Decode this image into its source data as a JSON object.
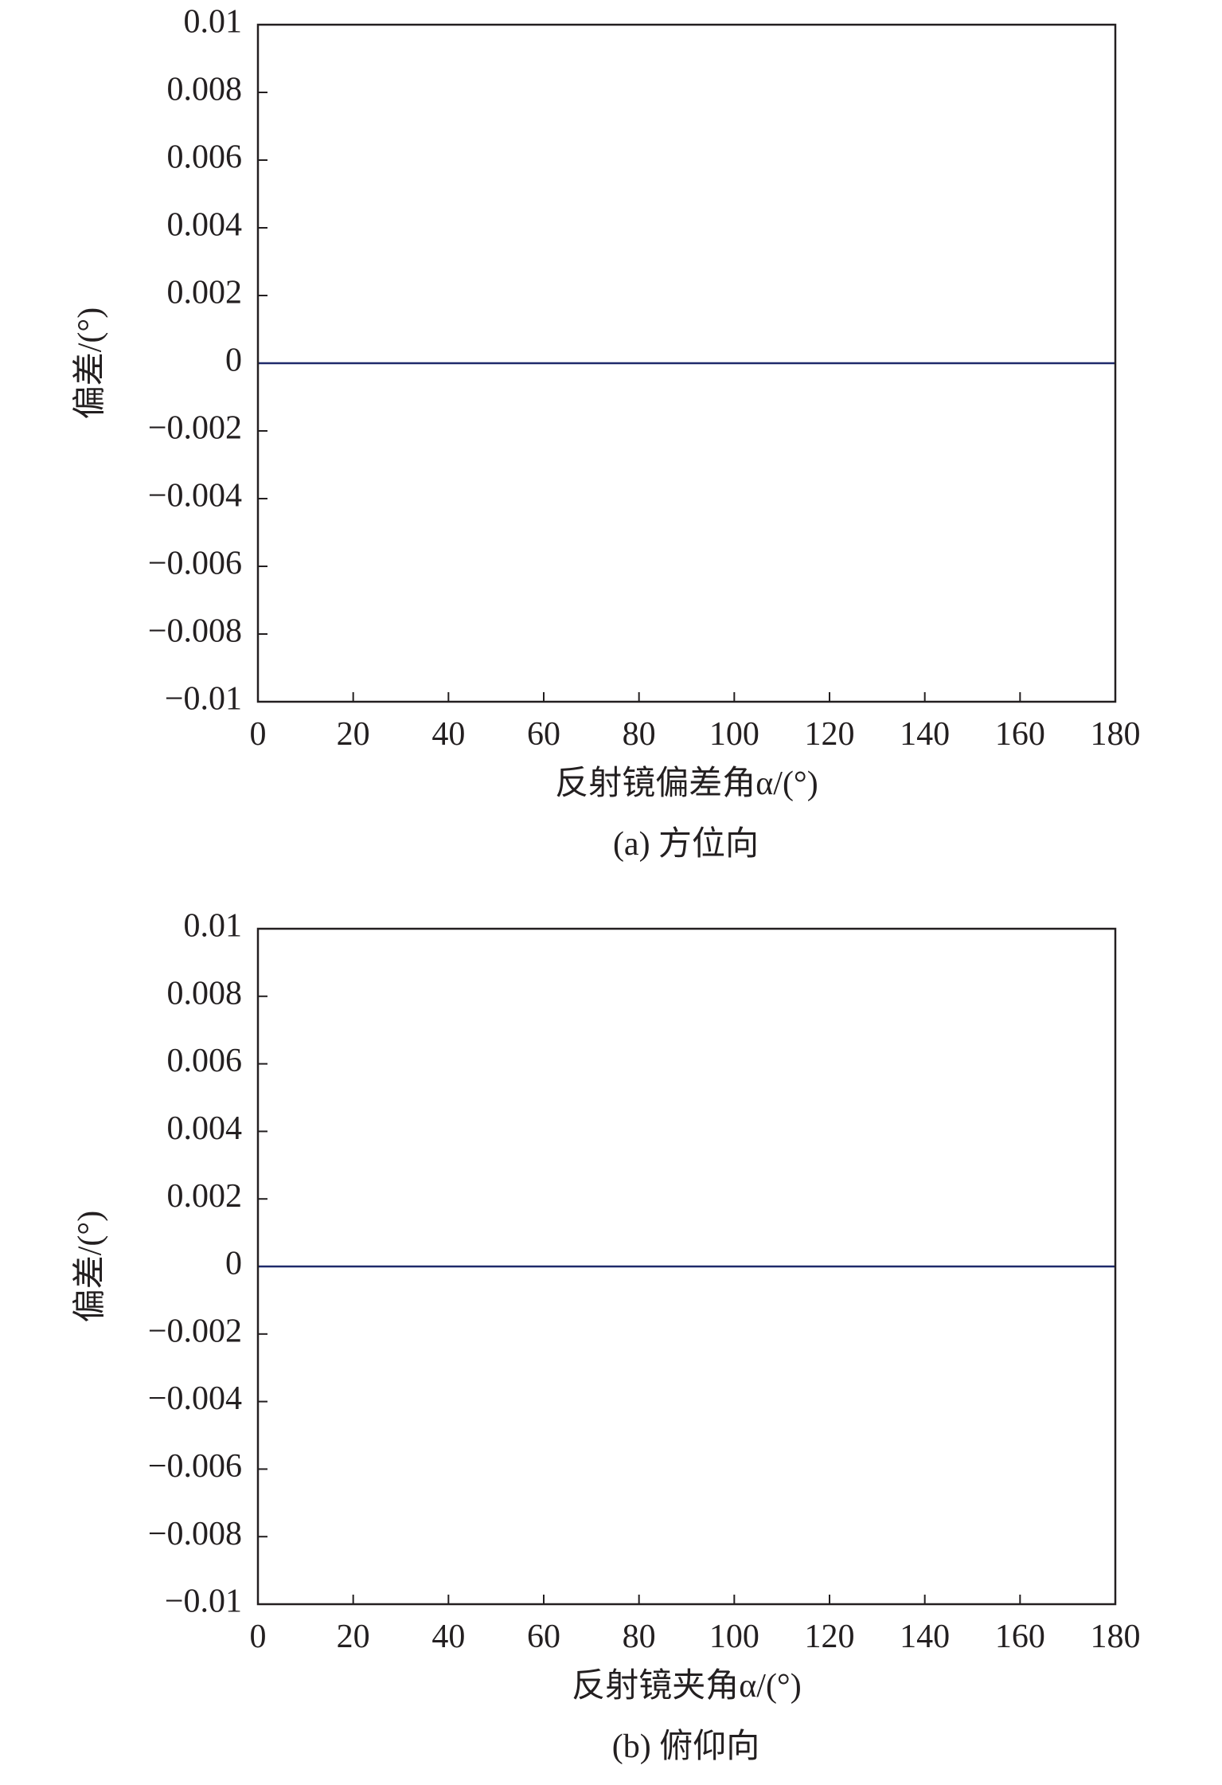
{
  "chart_data": [
    {
      "type": "line",
      "title": "(a) 方位向",
      "x_label": "反射镜偏差角α/(°)",
      "y_label": "偏差/(°)",
      "x": [
        0,
        10,
        20,
        30,
        40,
        50,
        60,
        70,
        80,
        90,
        100,
        110,
        120,
        130,
        140,
        150,
        160,
        170,
        180
      ],
      "values": [
        0,
        0,
        0,
        0,
        0,
        0,
        0,
        0,
        0,
        0,
        0,
        0,
        0,
        0,
        0,
        0,
        0,
        0,
        0
      ],
      "color": "#1f2a6b",
      "xlim": [
        0,
        180
      ],
      "xticks": [
        0,
        20,
        40,
        60,
        80,
        100,
        120,
        140,
        160,
        180
      ],
      "ylim": [
        -0.01,
        0.01
      ],
      "yticks": [
        {
          "value": -0.01,
          "label": "−0.01"
        },
        {
          "value": -0.008,
          "label": "−0.008"
        },
        {
          "value": -0.006,
          "label": "−0.006"
        },
        {
          "value": -0.004,
          "label": "−0.004"
        },
        {
          "value": -0.002,
          "label": "−0.002"
        },
        0,
        0.002,
        0.004,
        0.006,
        0.008,
        0.01
      ]
    },
    {
      "type": "line",
      "title": "(b) 俯仰向",
      "x_label": "反射镜夹角α/(°)",
      "y_label": "偏差/(°)",
      "x": [
        0,
        10,
        20,
        30,
        40,
        50,
        60,
        70,
        80,
        90,
        100,
        110,
        120,
        130,
        140,
        150,
        160,
        170,
        180
      ],
      "values": [
        0,
        0,
        0,
        0,
        0,
        0,
        0,
        0,
        0,
        0,
        0,
        0,
        0,
        0,
        0,
        0,
        0,
        0,
        0
      ],
      "color": "#1f2a6b",
      "xlim": [
        0,
        180
      ],
      "xticks": [
        0,
        20,
        40,
        60,
        80,
        100,
        120,
        140,
        160,
        180
      ],
      "ylim": [
        -0.01,
        0.01
      ],
      "yticks": [
        {
          "value": -0.01,
          "label": "−0.01"
        },
        {
          "value": -0.008,
          "label": "−0.008"
        },
        {
          "value": -0.006,
          "label": "−0.006"
        },
        {
          "value": -0.004,
          "label": "−0.004"
        },
        {
          "value": -0.002,
          "label": "−0.002"
        },
        0,
        0.002,
        0.004,
        0.006,
        0.008,
        0.01
      ]
    }
  ]
}
